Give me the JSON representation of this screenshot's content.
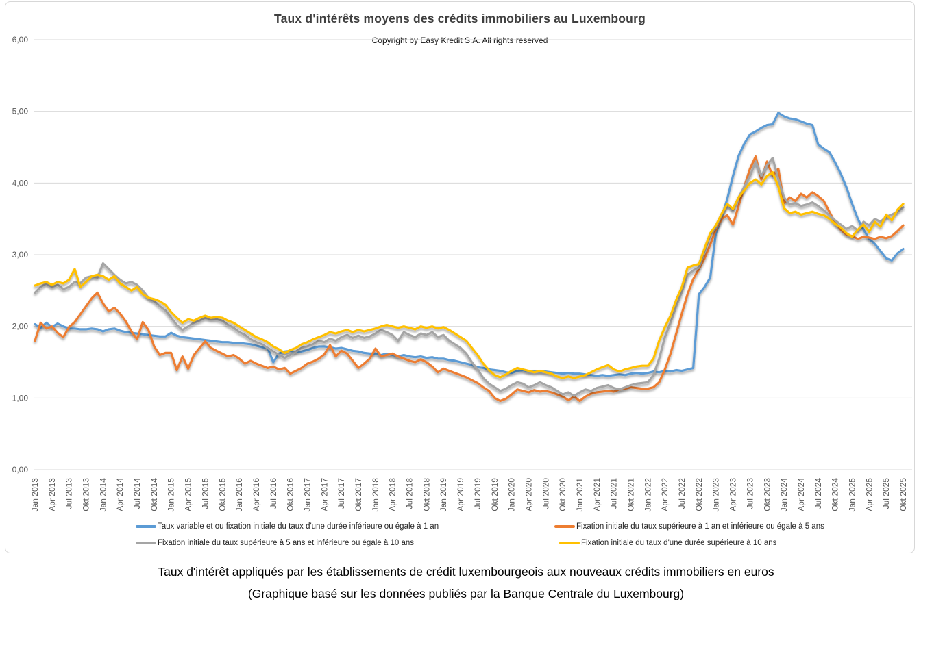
{
  "chart": {
    "title": "Taux d'intérêts moyens des crédits immobiliers au Luxembourg",
    "subtitle": "Copyright by Easy Kredit S.A. All rights reserved"
  },
  "chart_data": {
    "type": "line",
    "title": "Taux d'intérêts moyens des crédits immobiliers au Luxembourg",
    "xlabel": "",
    "ylabel": "",
    "ylim": [
      0,
      6
    ],
    "grid": "horizontal",
    "legend_position": "bottom",
    "y_tick_labels": [
      "0,00",
      "1,00",
      "2,00",
      "3,00",
      "4,00",
      "5,00",
      "6,00"
    ],
    "x_tick_labels": [
      "Jan 2013",
      "Apr 2013",
      "Jul 2013",
      "Okt 2013",
      "Jan 2014",
      "Apr 2014",
      "Jul 2014",
      "Okt 2014",
      "Jan 2015",
      "Apr 2015",
      "Jul 2015",
      "Okt 2015",
      "Jan 2016",
      "Apr 2016",
      "Jul 2016",
      "Okt 2016",
      "Jan 2017",
      "Apr 2017",
      "Jul 2017",
      "Okt 2017",
      "Jan 2018",
      "Apr 2018",
      "Jul 2018",
      "Okt 2018",
      "Jan 2019",
      "Apr 2019",
      "Jul 2019",
      "Okt 2019",
      "Jan 2020",
      "Apr 2020",
      "Jul 2020",
      "Okt 2020",
      "Jan 2021",
      "Apr 2021",
      "Jul 2021",
      "Okt 2021",
      "Jan 2022",
      "Apr 2022",
      "Jul 2022",
      "Okt 2022",
      "Jan 2023",
      "Apr 2023",
      "Jul 2023",
      "Okt 2023",
      "Jan 2024",
      "Apr 2024",
      "Jul 2024",
      "Okt 2024",
      "Jan 2025",
      "Apr 2025",
      "Jul 2025",
      "Okt 2025"
    ],
    "x_months_per_point": 1,
    "series": [
      {
        "name": "Taux variable et ou fixation initiale du taux d'une durée inférieure ou égale à 1 an",
        "color": "#5B9BD5",
        "values": [
          2.03,
          1.98,
          2.05,
          1.99,
          2.04,
          2.0,
          1.97,
          1.97,
          1.96,
          1.96,
          1.97,
          1.96,
          1.93,
          1.96,
          1.97,
          1.94,
          1.92,
          1.91,
          1.9,
          1.89,
          1.88,
          1.87,
          1.86,
          1.86,
          1.91,
          1.87,
          1.85,
          1.84,
          1.83,
          1.82,
          1.81,
          1.8,
          1.79,
          1.78,
          1.78,
          1.77,
          1.77,
          1.76,
          1.75,
          1.73,
          1.71,
          1.7,
          1.5,
          1.62,
          1.65,
          1.66,
          1.64,
          1.65,
          1.67,
          1.7,
          1.72,
          1.72,
          1.71,
          1.69,
          1.7,
          1.68,
          1.66,
          1.65,
          1.63,
          1.62,
          1.62,
          1.6,
          1.62,
          1.6,
          1.58,
          1.6,
          1.58,
          1.57,
          1.58,
          1.56,
          1.57,
          1.55,
          1.55,
          1.53,
          1.52,
          1.5,
          1.48,
          1.46,
          1.43,
          1.42,
          1.4,
          1.39,
          1.38,
          1.36,
          1.35,
          1.38,
          1.39,
          1.37,
          1.38,
          1.37,
          1.37,
          1.36,
          1.35,
          1.34,
          1.35,
          1.34,
          1.34,
          1.33,
          1.32,
          1.31,
          1.32,
          1.31,
          1.32,
          1.33,
          1.32,
          1.34,
          1.35,
          1.34,
          1.35,
          1.37,
          1.36,
          1.38,
          1.37,
          1.39,
          1.38,
          1.4,
          1.42,
          2.45,
          2.55,
          2.68,
          3.3,
          3.52,
          3.78,
          4.1,
          4.38,
          4.55,
          4.68,
          4.72,
          4.77,
          4.81,
          4.82,
          4.98,
          4.93,
          4.9,
          4.89,
          4.86,
          4.83,
          4.81,
          4.54,
          4.48,
          4.43,
          4.29,
          4.13,
          3.94,
          3.71,
          3.5,
          3.35,
          3.22,
          3.15,
          3.05,
          2.95,
          2.92,
          3.02,
          3.08
        ]
      },
      {
        "name": "Fixation initiale du taux supérieure à 1 an et inférieure ou égale à 5 ans",
        "color": "#ED7D31",
        "values": [
          1.8,
          2.05,
          1.97,
          2.0,
          1.91,
          1.85,
          1.99,
          2.06,
          2.17,
          2.28,
          2.39,
          2.47,
          2.32,
          2.21,
          2.26,
          2.18,
          2.07,
          1.93,
          1.82,
          2.06,
          1.95,
          1.72,
          1.6,
          1.63,
          1.63,
          1.39,
          1.58,
          1.41,
          1.6,
          1.7,
          1.79,
          1.7,
          1.66,
          1.62,
          1.58,
          1.6,
          1.55,
          1.48,
          1.52,
          1.48,
          1.45,
          1.42,
          1.44,
          1.4,
          1.42,
          1.34,
          1.38,
          1.42,
          1.48,
          1.51,
          1.55,
          1.61,
          1.74,
          1.58,
          1.66,
          1.62,
          1.52,
          1.42,
          1.48,
          1.55,
          1.69,
          1.58,
          1.6,
          1.62,
          1.58,
          1.55,
          1.52,
          1.5,
          1.54,
          1.5,
          1.44,
          1.36,
          1.41,
          1.38,
          1.35,
          1.32,
          1.29,
          1.25,
          1.21,
          1.15,
          1.1,
          1.0,
          0.96,
          0.99,
          1.05,
          1.12,
          1.1,
          1.08,
          1.11,
          1.09,
          1.1,
          1.08,
          1.05,
          1.02,
          0.97,
          1.02,
          0.96,
          1.02,
          1.06,
          1.08,
          1.09,
          1.1,
          1.09,
          1.12,
          1.13,
          1.15,
          1.14,
          1.13,
          1.13,
          1.15,
          1.22,
          1.4,
          1.62,
          1.9,
          2.18,
          2.45,
          2.66,
          2.8,
          2.95,
          3.14,
          3.35,
          3.5,
          3.55,
          3.42,
          3.68,
          3.95,
          4.2,
          4.37,
          4.05,
          4.3,
          4.1,
          4.2,
          3.72,
          3.8,
          3.75,
          3.85,
          3.8,
          3.87,
          3.82,
          3.75,
          3.6,
          3.45,
          3.35,
          3.28,
          3.26,
          3.22,
          3.25,
          3.24,
          3.22,
          3.25,
          3.23,
          3.26,
          3.33,
          3.41
        ]
      },
      {
        "name": "Fixation initiale du taux supérieure à 5 ans et inférieure ou égale à 10 ans",
        "color": "#A5A5A5",
        "values": [
          2.47,
          2.55,
          2.6,
          2.55,
          2.58,
          2.52,
          2.55,
          2.62,
          2.6,
          2.68,
          2.7,
          2.68,
          2.88,
          2.8,
          2.72,
          2.65,
          2.6,
          2.62,
          2.58,
          2.5,
          2.4,
          2.35,
          2.28,
          2.22,
          2.12,
          2.02,
          1.95,
          2.0,
          2.05,
          2.08,
          2.12,
          2.1,
          2.1,
          2.08,
          2.02,
          1.98,
          1.92,
          1.88,
          1.82,
          1.78,
          1.75,
          1.7,
          1.65,
          1.6,
          1.56,
          1.6,
          1.65,
          1.7,
          1.72,
          1.75,
          1.8,
          1.78,
          1.83,
          1.8,
          1.85,
          1.88,
          1.84,
          1.87,
          1.84,
          1.86,
          1.9,
          1.95,
          1.92,
          1.88,
          1.8,
          1.92,
          1.88,
          1.85,
          1.9,
          1.88,
          1.92,
          1.85,
          1.88,
          1.8,
          1.75,
          1.7,
          1.62,
          1.5,
          1.4,
          1.28,
          1.2,
          1.15,
          1.1,
          1.13,
          1.18,
          1.22,
          1.2,
          1.15,
          1.18,
          1.22,
          1.18,
          1.15,
          1.1,
          1.05,
          1.08,
          1.03,
          1.08,
          1.12,
          1.1,
          1.14,
          1.16,
          1.18,
          1.14,
          1.12,
          1.15,
          1.18,
          1.2,
          1.21,
          1.22,
          1.32,
          1.55,
          1.85,
          2.05,
          2.28,
          2.48,
          2.72,
          2.78,
          2.82,
          3.05,
          3.28,
          3.38,
          3.55,
          3.7,
          3.62,
          3.8,
          3.95,
          4.1,
          4.3,
          4.1,
          4.25,
          4.35,
          4.05,
          3.8,
          3.7,
          3.72,
          3.68,
          3.7,
          3.73,
          3.68,
          3.62,
          3.55,
          3.48,
          3.42,
          3.36,
          3.4,
          3.34,
          3.46,
          3.41,
          3.5,
          3.46,
          3.53,
          3.56,
          3.6,
          3.66
        ]
      },
      {
        "name": "Fixation initiale du taux d'une durée supérieure à 10 ans",
        "color": "#FFC000",
        "values": [
          2.57,
          2.6,
          2.62,
          2.58,
          2.62,
          2.6,
          2.65,
          2.8,
          2.55,
          2.62,
          2.7,
          2.72,
          2.7,
          2.65,
          2.7,
          2.6,
          2.55,
          2.5,
          2.55,
          2.45,
          2.4,
          2.38,
          2.35,
          2.3,
          2.2,
          2.12,
          2.05,
          2.1,
          2.08,
          2.12,
          2.15,
          2.12,
          2.13,
          2.12,
          2.08,
          2.05,
          2.0,
          1.95,
          1.9,
          1.85,
          1.82,
          1.78,
          1.72,
          1.68,
          1.63,
          1.67,
          1.7,
          1.75,
          1.78,
          1.82,
          1.85,
          1.88,
          1.92,
          1.9,
          1.93,
          1.95,
          1.92,
          1.95,
          1.93,
          1.95,
          1.97,
          2.0,
          2.02,
          2.0,
          1.98,
          2.0,
          1.98,
          1.96,
          2.0,
          1.98,
          2.0,
          1.97,
          1.99,
          1.95,
          1.9,
          1.85,
          1.8,
          1.7,
          1.6,
          1.48,
          1.39,
          1.32,
          1.29,
          1.33,
          1.38,
          1.42,
          1.4,
          1.38,
          1.36,
          1.38,
          1.36,
          1.34,
          1.3,
          1.28,
          1.3,
          1.28,
          1.3,
          1.32,
          1.36,
          1.4,
          1.43,
          1.46,
          1.4,
          1.37,
          1.4,
          1.42,
          1.44,
          1.45,
          1.45,
          1.55,
          1.8,
          1.99,
          2.15,
          2.37,
          2.55,
          2.82,
          2.85,
          2.87,
          3.09,
          3.3,
          3.41,
          3.57,
          3.71,
          3.64,
          3.8,
          3.9,
          4.0,
          4.05,
          3.98,
          4.1,
          4.15,
          3.95,
          3.65,
          3.58,
          3.6,
          3.56,
          3.58,
          3.6,
          3.57,
          3.55,
          3.5,
          3.43,
          3.38,
          3.3,
          3.25,
          3.35,
          3.42,
          3.32,
          3.46,
          3.39,
          3.56,
          3.48,
          3.63,
          3.71
        ]
      }
    ]
  },
  "legend": {
    "items": [
      {
        "label": "Taux variable et ou fixation initiale du taux d'une durée inférieure ou égale à 1 an",
        "color": "#5B9BD5"
      },
      {
        "label": "Fixation initiale du taux supérieure à 1 an et inférieure ou égale à 5 ans",
        "color": "#ED7D31"
      },
      {
        "label": "Fixation initiale du taux supérieure à 5 ans et inférieure ou égale à 10 ans",
        "color": "#A5A5A5"
      },
      {
        "label": "Fixation initiale du taux d'une durée supérieure à 10 ans",
        "color": "#FFC000"
      }
    ]
  },
  "caption": {
    "line1": "Taux d'intérêt appliqués par les établissements de crédit luxembourgeois aux nouveaux crédits immobiliers en euros",
    "line2": "(Graphique basé sur les données publiés par la Banque Centrale du Luxembourg)"
  }
}
